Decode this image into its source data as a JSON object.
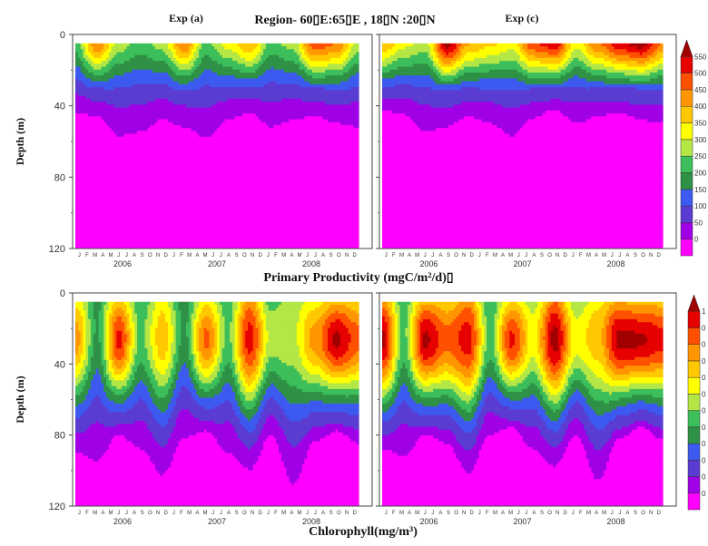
{
  "header": {
    "exp_a": "Exp (a)",
    "region": "Region-  60▯E:65▯E , 18▯N :20▯N",
    "exp_c": "Exp (c)"
  },
  "sections": {
    "pp_title": "Primary Productivity (mgC/m²/d)▯",
    "chl_title": "Chlorophyll(mg/m³)"
  },
  "axes": {
    "ylabel": "Depth (m)",
    "years": [
      "2006",
      "2007",
      "2008"
    ],
    "month_letters": [
      "J",
      "F",
      "M",
      "A",
      "M",
      "J",
      "J",
      "A",
      "S",
      "O",
      "N",
      "D"
    ]
  },
  "colors": {
    "scale": [
      "#ff00ff",
      "#a000e6",
      "#5a3cd2",
      "#3c5af0",
      "#2e9146",
      "#3cbe5a",
      "#b4e646",
      "#ffff00",
      "#ffc800",
      "#ff9600",
      "#ff5000",
      "#e60000",
      "#a00000"
    ]
  },
  "chart_data": [
    {
      "type": "heatmap",
      "panel": "top-left",
      "title": "Exp (a)",
      "ylabel": "Depth (m)",
      "ylim": [
        120,
        0
      ],
      "y_ticks": [
        0,
        40,
        80,
        120
      ],
      "x": "monthly, Jan 2006 to Dec 2008",
      "variable": "Primary Productivity (mgC/m²/d)",
      "peaks": [
        0.2,
        0.7,
        0.3,
        0.2,
        0.3,
        0.7,
        0.2,
        0.4,
        0.6,
        0.2,
        0.3,
        0.8,
        0.7,
        0.3
      ],
      "euphotic_depth_m": [
        44,
        46,
        57,
        55,
        48,
        52,
        58,
        48,
        44,
        52,
        48,
        46,
        50,
        52
      ]
    },
    {
      "type": "heatmap",
      "panel": "top-right",
      "title": "Exp (c)",
      "ylabel": "",
      "ylim": [
        120,
        0
      ],
      "y_ticks": [
        0,
        40,
        80,
        120
      ],
      "x": "monthly, Jan 2006 to Dec 2008",
      "variable": "Primary Productivity (mgC/m²/d)",
      "peaks": [
        0.6,
        0.4,
        0.3,
        1.0,
        0.6,
        0.5,
        0.4,
        0.8,
        0.9,
        0.4,
        0.7,
        0.9,
        1.0,
        0.7
      ],
      "euphotic_depth_m": [
        42,
        45,
        55,
        52,
        46,
        50,
        57,
        47,
        42,
        50,
        46,
        44,
        48,
        50
      ]
    },
    {
      "type": "heatmap",
      "panel": "bottom-left",
      "title": "",
      "ylabel": "Depth (m)",
      "ylim": [
        120,
        0
      ],
      "y_ticks": [
        0,
        40,
        80,
        120
      ],
      "x": "monthly, Jan 2006 to Dec 2008",
      "variable": "Chlorophyll (mg/m³)",
      "peaks": [
        0.7,
        0.2,
        0.9,
        0.3,
        0.6,
        0.2,
        0.8,
        0.3,
        0.9,
        0.4,
        0.4,
        0.7,
        1.0,
        0.8
      ],
      "euphotic_depth_m": [
        90,
        95,
        80,
        88,
        103,
        82,
        78,
        90,
        100,
        80,
        108,
        84,
        78,
        85
      ]
    },
    {
      "type": "heatmap",
      "panel": "bottom-right",
      "title": "",
      "ylabel": "",
      "ylim": [
        120,
        0
      ],
      "y_ticks": [
        0,
        40,
        80,
        120
      ],
      "x": "monthly, Jan 2006 to Dec 2008",
      "variable": "Chlorophyll (mg/m³)",
      "peaks": [
        1.0,
        0.3,
        1.0,
        0.8,
        0.9,
        0.3,
        0.9,
        0.5,
        1.0,
        0.5,
        0.6,
        1.0,
        1.0,
        0.9
      ],
      "euphotic_depth_m": [
        88,
        92,
        80,
        85,
        102,
        80,
        76,
        88,
        98,
        80,
        106,
        82,
        76,
        83
      ]
    }
  ]
}
